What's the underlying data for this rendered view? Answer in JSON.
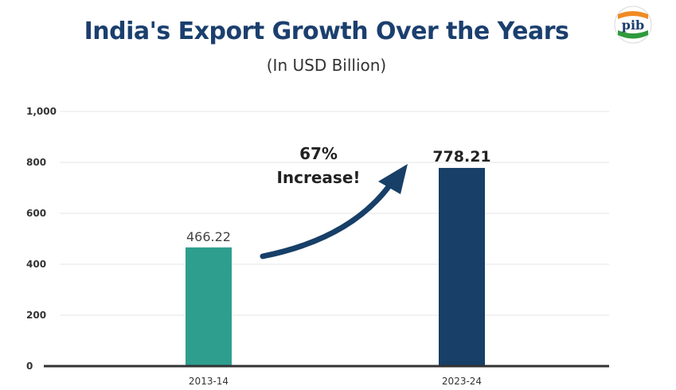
{
  "header": {
    "title": "India's Export Growth Over the Years",
    "subtitle": "(In USD Billion)",
    "logo_icon": "pib-logo",
    "logo_text": "pib"
  },
  "chart_data": {
    "type": "bar",
    "categories": [
      "2013-14",
      "2023-24"
    ],
    "values": [
      466.22,
      778.21
    ],
    "data_labels": [
      "466.22",
      "778.21"
    ],
    "colors": [
      "#2e9e8f",
      "#173f67"
    ],
    "ylim": [
      0,
      1000
    ],
    "yticks": [
      0,
      200,
      400,
      600,
      800,
      1000
    ],
    "ytick_labels": [
      "0",
      "200",
      "400",
      "600",
      "800",
      "1,000"
    ],
    "grid": true,
    "annotation": {
      "line1": "67%",
      "line2": "Increase!",
      "arrow_color": "#173f67"
    }
  }
}
